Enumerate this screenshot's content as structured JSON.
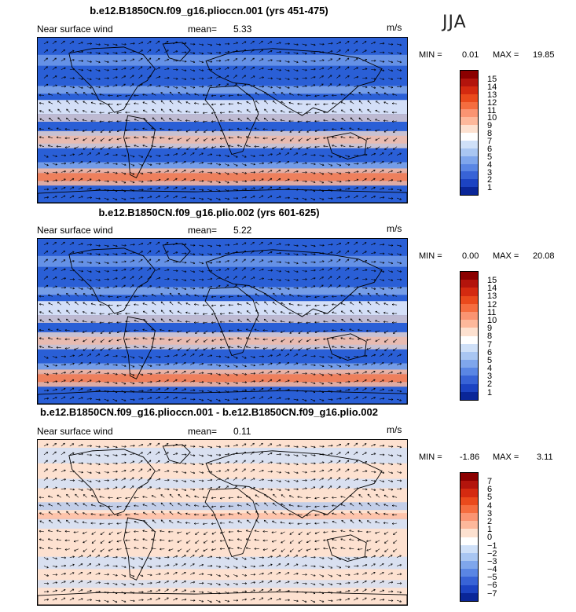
{
  "season": "JJA",
  "panels": [
    {
      "title": "b.e12.B1850CN.f09_g16.plioccn.001 (yrs 451-475)",
      "variable": "Near surface wind",
      "mean_label": "mean=",
      "mean_value": "5.33",
      "units": "m/s",
      "min_label": "MIN =",
      "min_value": "0.01",
      "max_label": "MAX =",
      "max_value": "19.85",
      "colorbar_labels": [
        "15",
        "14",
        "13",
        "12",
        "11",
        "10",
        "9",
        "8",
        "7",
        "6",
        "5",
        "4",
        "3",
        "2",
        "1"
      ],
      "colorbar_colors": [
        "#8b0000",
        "#b3140c",
        "#d42a10",
        "#ea4a1c",
        "#f56d3f",
        "#fa9472",
        "#fdb89b",
        "#fde1d0",
        "#ffffff",
        "#cfe0f8",
        "#a9c6f2",
        "#7fa6ec",
        "#5a86e4",
        "#3863d6",
        "#1c43c2",
        "#0a2698"
      ],
      "field_stats": {
        "bg": "#2a5fd6"
      }
    },
    {
      "title": "b.e12.B1850CN.f09_g16.plio.002 (yrs 601-625)",
      "variable": "Near surface wind",
      "mean_label": "mean=",
      "mean_value": "5.22",
      "units": "m/s",
      "min_label": "MIN =",
      "min_value": "0.00",
      "max_label": "MAX =",
      "max_value": "20.08",
      "colorbar_labels": [
        "15",
        "14",
        "13",
        "12",
        "11",
        "10",
        "9",
        "8",
        "7",
        "6",
        "5",
        "4",
        "3",
        "2",
        "1"
      ],
      "colorbar_colors": [
        "#8b0000",
        "#b3140c",
        "#d42a10",
        "#ea4a1c",
        "#f56d3f",
        "#fa9472",
        "#fdb89b",
        "#fde1d0",
        "#ffffff",
        "#cfe0f8",
        "#a9c6f2",
        "#7fa6ec",
        "#5a86e4",
        "#3863d6",
        "#1c43c2",
        "#0a2698"
      ],
      "field_stats": {
        "bg": "#2a5fd6"
      }
    },
    {
      "title": "b.e12.B1850CN.f09_g16.plioccn.001 - b.e12.B1850CN.f09_g16.plio.002",
      "variable": "Near surface wind",
      "mean_label": "mean=",
      "mean_value": "0.11",
      "units": "m/s",
      "min_label": "MIN =",
      "min_value": "-1.86",
      "max_label": "MAX =",
      "max_value": "3.11",
      "colorbar_labels": [
        "7",
        "6",
        "5",
        "4",
        "3",
        "2",
        "1",
        "0",
        "−1",
        "−2",
        "−3",
        "−4",
        "−5",
        "−6",
        "−7"
      ],
      "colorbar_colors": [
        "#8b0000",
        "#b3140c",
        "#d42a10",
        "#ea4a1c",
        "#f56d3f",
        "#fa9472",
        "#fdb89b",
        "#fde1d0",
        "#ffffff",
        "#cfe0f8",
        "#a9c6f2",
        "#7fa6ec",
        "#5a86e4",
        "#3863d6",
        "#1c43c2",
        "#0a2698"
      ],
      "field_stats": {
        "bg": "#fde1d0"
      }
    }
  ]
}
